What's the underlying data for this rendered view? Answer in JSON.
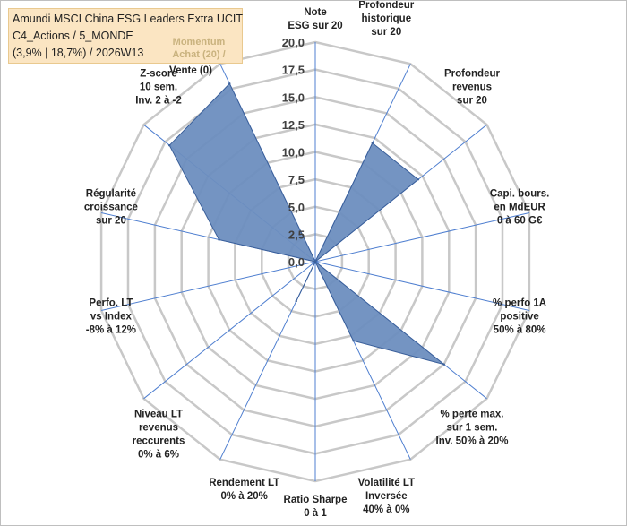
{
  "header": {
    "line1": "Amundi MSCI China ESG Leaders Extra UCIT",
    "line2": "C4_Actions / 5_MONDE",
    "line3": "(3,9% | 18,7%) / 2026W13",
    "momentum_line1": "Momentum",
    "momentum_line2": "Achat (20) /",
    "momentum_line3": "Vente (0)"
  },
  "colors": {
    "fill": "#6d8ebf",
    "stroke": "#3a5f9a",
    "grid": "#c8c8c8",
    "spoke": "#4f7fd0",
    "header_bg": "#fbe5c2",
    "legend_text": "#c9b27e"
  },
  "chart_data": {
    "type": "radar",
    "title": "",
    "rlim": [
      0,
      20
    ],
    "rticks": [
      "0,0",
      "2,5",
      "5,0",
      "7,5",
      "10,0",
      "12,5",
      "15,0",
      "17,5",
      "20,0"
    ],
    "grid": true,
    "categories": [
      [
        "Note",
        "ESG sur 20"
      ],
      [
        "Profondeur",
        "historique",
        "sur 20"
      ],
      [
        "Profondeur",
        "revenus",
        "sur 20"
      ],
      [
        "Capi. bours.",
        "en MdEUR",
        "0 à 60 G€"
      ],
      [
        "% perfo 1A",
        "positive",
        "50% à 80%"
      ],
      [
        "% perte max.",
        "sur 1 sem.",
        "Inv. 50% à 20%"
      ],
      [
        "Volatilité LT",
        "Inversée",
        "40% à 0%"
      ],
      [
        "Ratio Sharpe",
        "0 à 1"
      ],
      [
        "Rendement LT",
        "0% à 20%"
      ],
      [
        "Niveau LT",
        "revenus",
        "reccurents",
        "0% à 6%"
      ],
      [
        "Perfo. LT",
        "vs Index",
        "-8% à 12%"
      ],
      [
        "Régularité",
        "croissance",
        "sur 20"
      ],
      [
        "Z-score",
        "10 sem.",
        "Inv. 2 à -2"
      ],
      [
        "Momentum",
        "Achat (20) /",
        "Vente (0)"
      ]
    ],
    "series": [
      {
        "values": [
          0,
          12,
          12,
          0,
          0,
          15,
          8,
          0,
          4,
          0,
          0,
          9,
          17,
          18
        ]
      }
    ]
  }
}
